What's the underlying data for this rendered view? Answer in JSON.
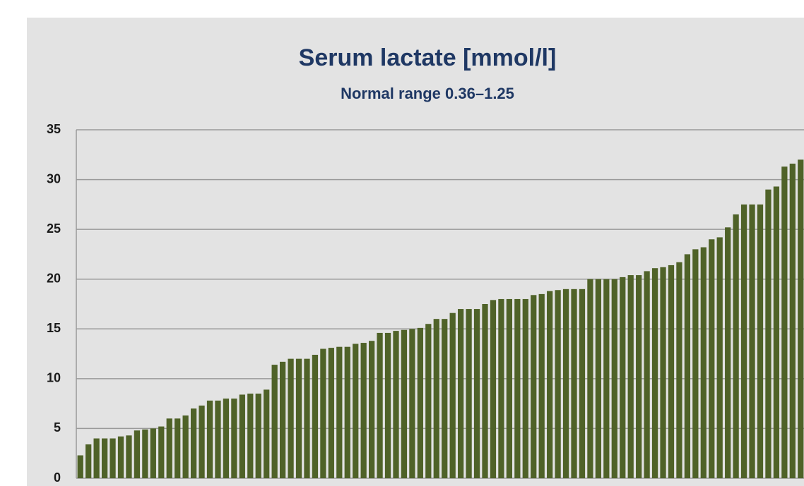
{
  "chart_data": {
    "type": "bar",
    "title": "Serum lactate [mmol/l]",
    "subtitle": "Normal range 0.36–1.25",
    "categories": [
      null,
      null,
      null,
      null,
      null,
      null,
      null,
      null,
      null,
      null,
      null,
      null,
      null,
      null,
      null,
      null,
      null,
      null,
      null,
      null,
      null,
      null,
      null,
      null,
      null,
      null,
      null,
      null,
      null,
      null,
      null,
      null,
      null,
      null,
      null,
      null,
      null,
      null,
      null,
      null,
      null,
      null,
      null,
      null,
      null,
      null,
      null,
      null,
      null,
      null,
      null,
      null,
      null,
      null,
      null,
      null,
      null,
      null,
      null,
      null,
      null,
      null,
      null,
      null,
      null,
      null,
      null,
      null,
      null,
      null,
      null,
      null,
      null,
      null,
      null,
      null,
      null,
      null,
      null,
      null,
      null,
      null,
      null,
      null,
      null,
      null,
      null,
      null,
      null,
      null
    ],
    "values": [
      2.3,
      3.4,
      4.0,
      4.0,
      4.0,
      4.2,
      4.3,
      4.8,
      4.9,
      5.0,
      5.2,
      6.0,
      6.0,
      6.3,
      7.0,
      7.3,
      7.8,
      7.8,
      8.0,
      8.0,
      8.4,
      8.5,
      8.5,
      8.9,
      11.4,
      11.7,
      12.0,
      12.0,
      12.0,
      12.4,
      13.0,
      13.1,
      13.2,
      13.2,
      13.5,
      13.6,
      13.8,
      14.6,
      14.6,
      14.8,
      14.9,
      15.0,
      15.1,
      15.5,
      16.0,
      16.0,
      16.6,
      17.0,
      17.0,
      17.0,
      17.5,
      17.9,
      18.0,
      18.0,
      18.0,
      18.0,
      18.4,
      18.5,
      18.8,
      18.9,
      19.0,
      19.0,
      19.0,
      20.0,
      20.0,
      20.0,
      20.0,
      20.2,
      20.4,
      20.4,
      20.8,
      21.1,
      21.2,
      21.4,
      21.7,
      22.5,
      23.0,
      23.2,
      24.0,
      24.2,
      25.2,
      26.5,
      27.5,
      27.5,
      27.5,
      29.0,
      29.3,
      31.3,
      31.6,
      32.0
    ],
    "color": "#4f6228",
    "ylim": [
      0,
      35
    ],
    "yticks": [
      0,
      5,
      10,
      15,
      20,
      25,
      30,
      35
    ],
    "grid": true
  }
}
